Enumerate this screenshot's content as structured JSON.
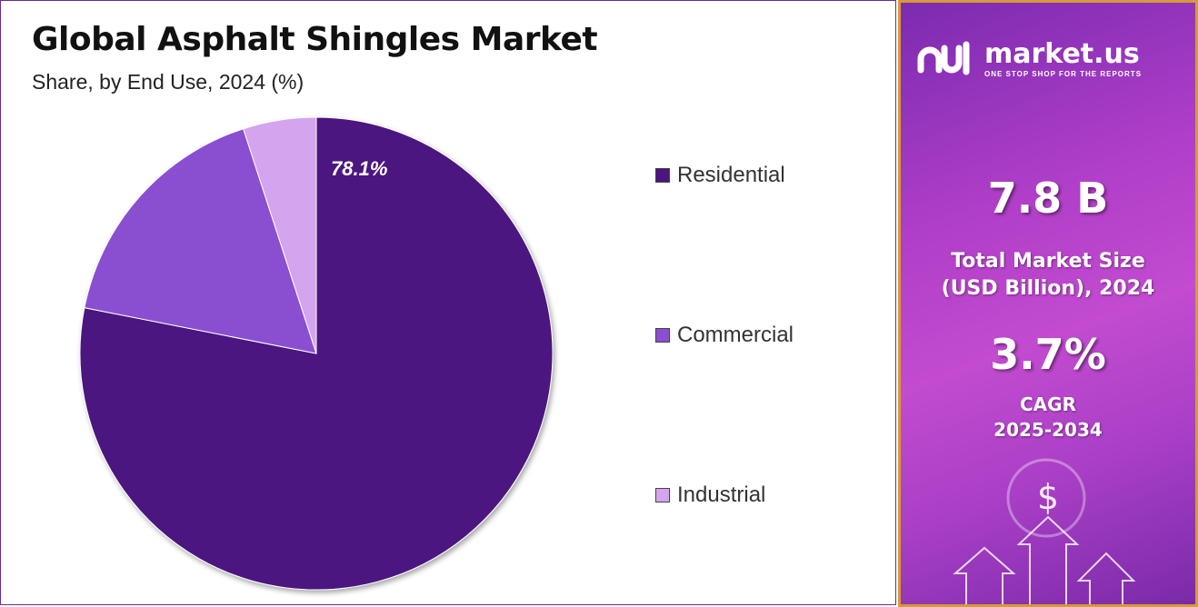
{
  "header": {
    "title": "Global Asphalt Shingles Market",
    "subtitle": "Share, by End Use, 2024 (%)"
  },
  "chart_data": {
    "type": "pie",
    "title": "Global Asphalt Shingles Market",
    "subtitle": "Share, by End Use, 2024 (%)",
    "categories": [
      "Residential",
      "Commercial",
      "Industrial"
    ],
    "values": [
      78.1,
      16.9,
      5.0
    ],
    "colors": [
      "#4b167f",
      "#8a4fd0",
      "#d4a5ee"
    ],
    "data_labels": [
      "78.1%"
    ],
    "legend_position": "right"
  },
  "sidebar": {
    "logo_text": "market.us",
    "logo_tagline": "ONE STOP SHOP FOR THE REPORTS",
    "market_size_value": "7.8 B",
    "market_size_label_line1": "Total Market Size",
    "market_size_label_line2": "(USD Billion), 2024",
    "cagr_value": "3.7%",
    "cagr_label_line1": "CAGR",
    "cagr_label_line2": "2025-2034",
    "dollar_symbol": "$",
    "accent_border": "#d79a3a"
  }
}
